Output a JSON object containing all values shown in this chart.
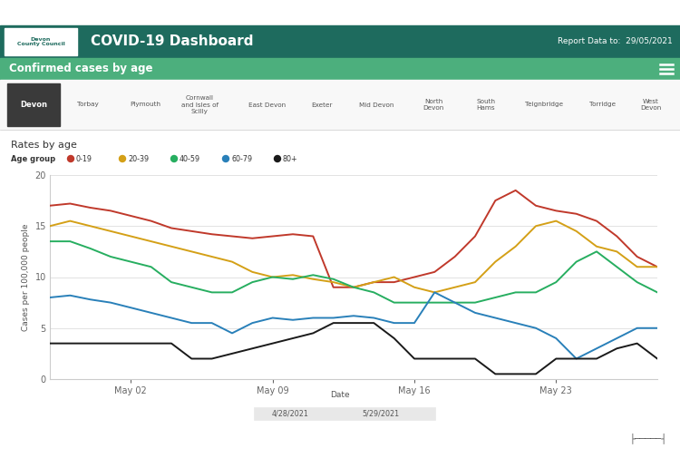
{
  "title": "COVID-19 Dashboard",
  "report_date": "Report Data to:  29/05/2021",
  "subtitle": "Confirmed cases by age",
  "section_title": "Rates by age",
  "ylabel": "Cases per 100,000 people",
  "xlabel": "Date",
  "date_range_label": [
    "4/28/2021",
    "5/29/2021"
  ],
  "ylim": [
    0,
    20
  ],
  "yticks": [
    0,
    5,
    10,
    15,
    20
  ],
  "x_tick_labels": [
    "May 02",
    "May 09",
    "May 16",
    "May 23"
  ],
  "header_bg": "#1e6b5e",
  "subheader_bg": "#4caf7d",
  "nav_bg": "#f8f8f8",
  "age_groups": [
    "0-19",
    "20-39",
    "40-59",
    "60-79",
    "80+"
  ],
  "colors": [
    "#c0392b",
    "#d4a017",
    "#27ae60",
    "#2980b9",
    "#1a1a1a"
  ],
  "series_0_19": [
    17.0,
    17.2,
    16.8,
    16.5,
    16.0,
    15.5,
    14.8,
    14.5,
    14.2,
    14.0,
    13.8,
    14.0,
    14.2,
    14.0,
    9.0,
    9.0,
    9.5,
    9.5,
    10.0,
    10.5,
    12.0,
    14.0,
    17.5,
    18.5,
    17.0,
    16.5,
    16.2,
    15.5,
    14.0,
    12.0,
    11.0
  ],
  "series_20_39": [
    15.0,
    15.5,
    15.0,
    14.5,
    14.0,
    13.5,
    13.0,
    12.5,
    12.0,
    11.5,
    10.5,
    10.0,
    10.2,
    9.8,
    9.5,
    9.0,
    9.5,
    10.0,
    9.0,
    8.5,
    9.0,
    9.5,
    11.5,
    13.0,
    15.0,
    15.5,
    14.5,
    13.0,
    12.5,
    11.0,
    11.0
  ],
  "series_40_59": [
    13.5,
    13.5,
    12.8,
    12.0,
    11.5,
    11.0,
    9.5,
    9.0,
    8.5,
    8.5,
    9.5,
    10.0,
    9.8,
    10.2,
    9.8,
    9.0,
    8.5,
    7.5,
    7.5,
    7.5,
    7.5,
    7.5,
    8.0,
    8.5,
    8.5,
    9.5,
    11.5,
    12.5,
    11.0,
    9.5,
    8.5
  ],
  "series_60_79": [
    8.0,
    8.2,
    7.8,
    7.5,
    7.0,
    6.5,
    6.0,
    5.5,
    5.5,
    4.5,
    5.5,
    6.0,
    5.8,
    6.0,
    6.0,
    6.2,
    6.0,
    5.5,
    5.5,
    8.5,
    7.5,
    6.5,
    6.0,
    5.5,
    5.0,
    4.0,
    2.0,
    3.0,
    4.0,
    5.0,
    5.0
  ],
  "series_80plus": [
    3.5,
    3.5,
    3.5,
    3.5,
    3.5,
    3.5,
    3.5,
    2.0,
    2.0,
    2.5,
    3.0,
    3.5,
    4.0,
    4.5,
    5.5,
    5.5,
    5.5,
    4.0,
    2.0,
    2.0,
    2.0,
    2.0,
    0.5,
    0.5,
    0.5,
    2.0,
    2.0,
    2.0,
    3.0,
    3.5,
    2.0
  ],
  "nav_items": [
    "Devon",
    "Torbay",
    "Plymouth",
    "Cornwall\nand Isles of\nScilly",
    "East Devon",
    "Exeter",
    "Mid Devon",
    "North\nDevon",
    "South\nHams",
    "Teignbridge",
    "Torridge",
    "West\nDevon"
  ],
  "bg_color": "#ffffff",
  "outer_bg": "#f0f0f0",
  "plot_area_color": "#ffffff",
  "grid_color": "#dddddd",
  "white_border": 28
}
